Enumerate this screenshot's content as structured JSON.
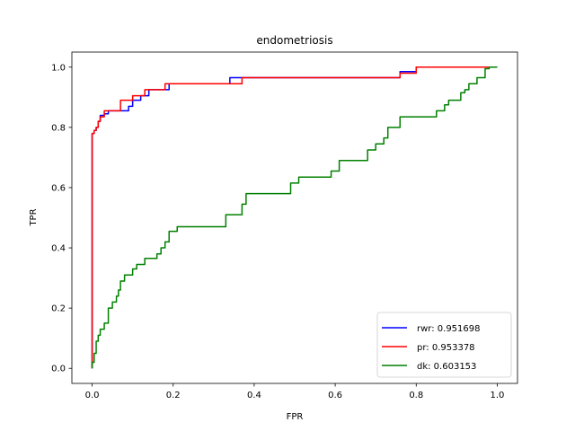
{
  "chart_data": {
    "type": "line",
    "title": "endometriosis",
    "xlabel": "FPR",
    "ylabel": "TPR",
    "xlim": [
      -0.05,
      1.05
    ],
    "ylim": [
      -0.05,
      1.05
    ],
    "xticks": [
      "0.0",
      "0.2",
      "0.4",
      "0.6",
      "0.8",
      "1.0"
    ],
    "yticks": [
      "0.0",
      "0.2",
      "0.4",
      "0.6",
      "0.8",
      "1.0"
    ],
    "grid": false,
    "legend_position": "lower-right",
    "series": [
      {
        "name": "rwr: 0.951698",
        "color": "#0000ff",
        "x": [
          0,
          0,
          0.005,
          0.005,
          0.01,
          0.01,
          0.015,
          0.015,
          0.02,
          0.02,
          0.03,
          0.03,
          0.04,
          0.04,
          0.09,
          0.09,
          0.1,
          0.1,
          0.12,
          0.12,
          0.14,
          0.14,
          0.19,
          0.19,
          0.34,
          0.34,
          0.76,
          0.76,
          0.8,
          0.8,
          1.0
        ],
        "y": [
          0,
          0.78,
          0.78,
          0.79,
          0.79,
          0.8,
          0.8,
          0.82,
          0.82,
          0.84,
          0.84,
          0.845,
          0.845,
          0.855,
          0.855,
          0.87,
          0.87,
          0.89,
          0.89,
          0.905,
          0.905,
          0.925,
          0.925,
          0.945,
          0.945,
          0.965,
          0.965,
          0.985,
          0.985,
          1.0,
          1.0
        ]
      },
      {
        "name": "pr: 0.953378",
        "color": "#ff0000",
        "x": [
          0,
          0,
          0.005,
          0.005,
          0.01,
          0.01,
          0.015,
          0.015,
          0.02,
          0.02,
          0.03,
          0.03,
          0.07,
          0.07,
          0.1,
          0.1,
          0.13,
          0.13,
          0.18,
          0.18,
          0.37,
          0.37,
          0.76,
          0.76,
          0.8,
          0.8,
          1.0
        ],
        "y": [
          0,
          0.78,
          0.78,
          0.79,
          0.79,
          0.8,
          0.8,
          0.82,
          0.82,
          0.835,
          0.835,
          0.855,
          0.855,
          0.89,
          0.89,
          0.905,
          0.905,
          0.925,
          0.925,
          0.945,
          0.945,
          0.965,
          0.965,
          0.98,
          0.98,
          1.0,
          1.0
        ]
      },
      {
        "name": "dk: 0.603153",
        "color": "#008000",
        "x": [
          0,
          0,
          0.005,
          0.005,
          0.01,
          0.01,
          0.015,
          0.015,
          0.02,
          0.02,
          0.03,
          0.03,
          0.04,
          0.04,
          0.05,
          0.05,
          0.06,
          0.06,
          0.065,
          0.065,
          0.07,
          0.07,
          0.08,
          0.08,
          0.1,
          0.1,
          0.11,
          0.11,
          0.13,
          0.13,
          0.16,
          0.16,
          0.17,
          0.17,
          0.18,
          0.18,
          0.19,
          0.19,
          0.21,
          0.21,
          0.33,
          0.33,
          0.37,
          0.37,
          0.38,
          0.38,
          0.49,
          0.49,
          0.51,
          0.51,
          0.59,
          0.59,
          0.61,
          0.61,
          0.68,
          0.68,
          0.7,
          0.7,
          0.72,
          0.72,
          0.73,
          0.73,
          0.76,
          0.76,
          0.85,
          0.85,
          0.87,
          0.87,
          0.88,
          0.88,
          0.91,
          0.91,
          0.92,
          0.92,
          0.93,
          0.93,
          0.95,
          0.95,
          0.97,
          0.97,
          0.98,
          0.98,
          1.0
        ],
        "y": [
          0,
          0.02,
          0.02,
          0.05,
          0.05,
          0.09,
          0.09,
          0.11,
          0.11,
          0.13,
          0.13,
          0.15,
          0.15,
          0.2,
          0.2,
          0.22,
          0.22,
          0.24,
          0.24,
          0.26,
          0.26,
          0.29,
          0.29,
          0.31,
          0.31,
          0.33,
          0.33,
          0.345,
          0.345,
          0.365,
          0.365,
          0.38,
          0.38,
          0.4,
          0.4,
          0.42,
          0.42,
          0.455,
          0.455,
          0.47,
          0.47,
          0.51,
          0.51,
          0.545,
          0.545,
          0.58,
          0.58,
          0.615,
          0.615,
          0.635,
          0.635,
          0.655,
          0.655,
          0.69,
          0.69,
          0.725,
          0.725,
          0.745,
          0.745,
          0.765,
          0.765,
          0.8,
          0.8,
          0.835,
          0.835,
          0.855,
          0.855,
          0.875,
          0.875,
          0.89,
          0.89,
          0.915,
          0.915,
          0.925,
          0.925,
          0.945,
          0.945,
          0.965,
          0.965,
          0.995,
          0.995,
          1.0,
          1.0
        ]
      }
    ]
  }
}
